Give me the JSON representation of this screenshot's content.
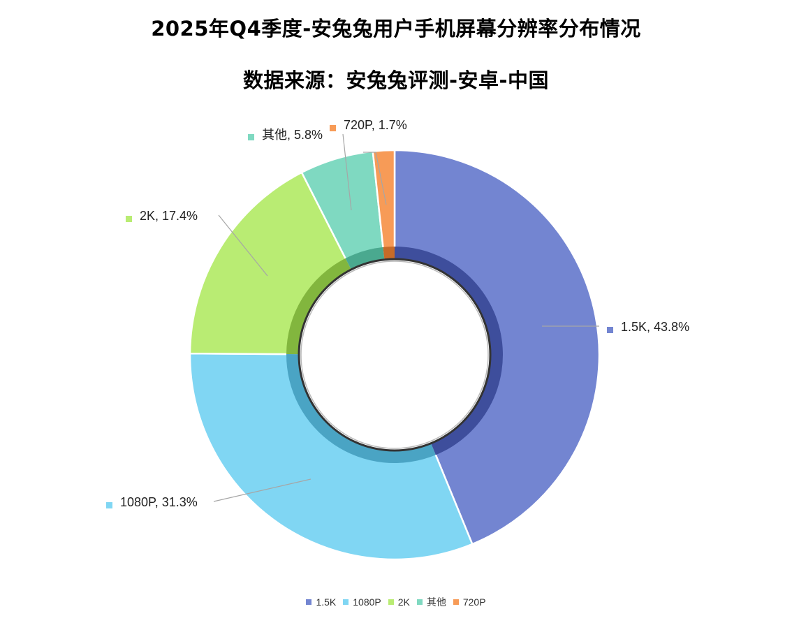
{
  "chart_data": {
    "type": "pie",
    "variant": "donut",
    "title": "2025年Q4季度-安兔兔用户手机屏幕分辨率分布情况",
    "subtitle": "数据来源：安兔兔评测-安卓-中国",
    "slices": [
      {
        "name": "1.5K",
        "value": 43.8,
        "label": "1.5K, 43.8%",
        "color": "#7385d1",
        "shade": "#3e4e9c"
      },
      {
        "name": "1080P",
        "value": 31.3,
        "label": "1080P, 31.3%",
        "color": "#80d6f3",
        "shade": "#4aa4c4"
      },
      {
        "name": "2K",
        "value": 17.4,
        "label": "2K, 17.4%",
        "color": "#b9ec73",
        "shade": "#82b63e"
      },
      {
        "name": "其他",
        "value": 5.8,
        "label": "其他, 5.8%",
        "color": "#7fd9c1",
        "shade": "#4aa98f"
      },
      {
        "name": "720P",
        "value": 1.7,
        "label": "720P, 1.7%",
        "color": "#f79b57",
        "shade": "#c66b28"
      }
    ],
    "legend": {
      "position": "bottom",
      "items": [
        "1.5K",
        "1080P",
        "2K",
        "其他",
        "720P"
      ]
    }
  }
}
